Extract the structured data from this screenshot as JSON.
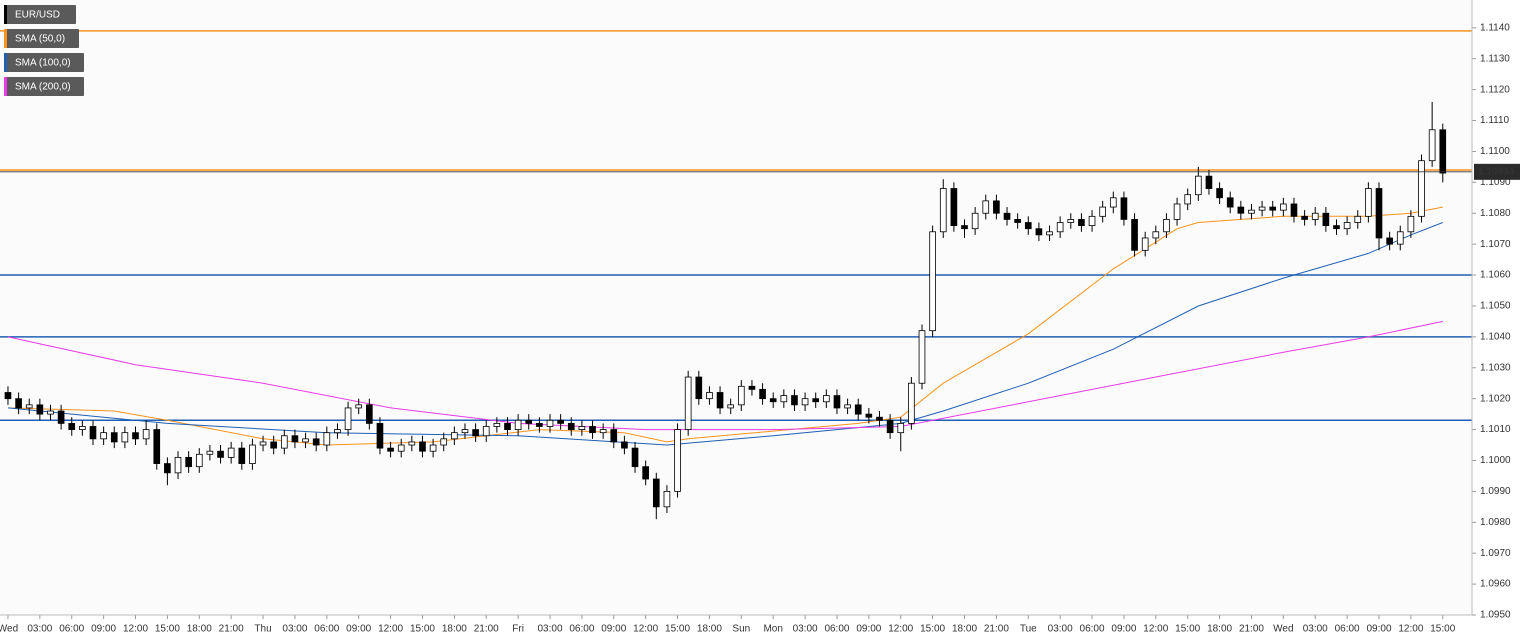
{
  "chart_data": {
    "type": "candlestick",
    "name": "EUR/USD",
    "color": "#000000",
    "up_color": "#ffffff",
    "down_color": "#000000",
    "open": [
      1.1022,
      1.102,
      1.1017,
      1.1018,
      1.1015,
      1.1016,
      1.1012,
      1.101,
      1.1011,
      1.1007,
      1.1009,
      1.1006,
      1.1009,
      1.1007,
      1.101,
      1.0999,
      1.0996,
      1.1001,
      1.0998,
      1.1002,
      1.1003,
      1.1001,
      1.1004,
      1.0999,
      1.1005,
      1.1006,
      1.1004,
      1.1008,
      1.1006,
      1.1007,
      1.1005,
      1.1009,
      1.101,
      1.1017,
      1.1018,
      1.1012,
      1.1004,
      1.1003,
      1.1005,
      1.1006,
      1.1003,
      1.1005,
      1.1007,
      1.1009,
      1.101,
      1.1008,
      1.1011,
      1.1012,
      1.101,
      1.1013,
      1.1012,
      1.1011,
      1.1013,
      1.1012,
      1.101,
      1.1011,
      1.1009,
      1.101,
      1.1006,
      1.1004,
      1.0998,
      1.0994,
      1.0985,
      1.099,
      1.101,
      1.1027,
      1.102,
      1.1022,
      1.1017,
      1.1018,
      1.1024,
      1.1023,
      1.102,
      1.1019,
      1.1021,
      1.1018,
      1.102,
      1.1019,
      1.1021,
      1.1017,
      1.1018,
      1.1015,
      1.1014,
      1.1013,
      1.1009,
      1.1012,
      1.1025,
      1.1042,
      1.1074,
      1.1088,
      1.1076,
      1.1075,
      1.108,
      1.1084,
      1.108,
      1.1078,
      1.1077,
      1.1075,
      1.1073,
      1.1074,
      1.1077,
      1.1078,
      1.1076,
      1.1079,
      1.1082,
      1.1085,
      1.1078,
      1.1068,
      1.1072,
      1.1074,
      1.1078,
      1.1083,
      1.1086,
      1.1092,
      1.1088,
      1.1085,
      1.1082,
      1.108,
      1.1081,
      1.1082,
      1.1081,
      1.1083,
      1.1079,
      1.1078,
      1.108,
      1.1076,
      1.1075,
      1.1077,
      1.1079,
      1.1088,
      1.1072,
      1.107,
      1.1074,
      1.1079,
      1.1097,
      1.1107
    ],
    "high": [
      1.1024,
      1.1022,
      1.102,
      1.102,
      1.1018,
      1.1018,
      1.1014,
      1.1013,
      1.1013,
      1.1011,
      1.1011,
      1.1011,
      1.1011,
      1.1013,
      1.1012,
      1.1001,
      1.1003,
      1.1003,
      1.1004,
      1.1005,
      1.1005,
      1.1006,
      1.1006,
      1.1007,
      1.1008,
      1.1008,
      1.101,
      1.101,
      1.1009,
      1.1009,
      1.1011,
      1.1012,
      1.1019,
      1.102,
      1.102,
      1.1014,
      1.1006,
      1.1007,
      1.1008,
      1.1008,
      1.1007,
      1.1009,
      1.1011,
      1.1012,
      1.1012,
      1.1013,
      1.1014,
      1.1014,
      1.1015,
      1.1015,
      1.1014,
      1.1015,
      1.1015,
      1.1014,
      1.1013,
      1.1013,
      1.1012,
      1.1012,
      1.1008,
      1.1006,
      1.1,
      1.0996,
      1.0992,
      1.1012,
      1.1029,
      1.1029,
      1.1024,
      1.1024,
      1.102,
      1.1026,
      1.1026,
      1.1025,
      1.1022,
      1.1023,
      1.1023,
      1.1022,
      1.1022,
      1.1023,
      1.1023,
      1.102,
      1.102,
      1.1017,
      1.1016,
      1.1015,
      1.1014,
      1.1027,
      1.1044,
      1.1076,
      1.1091,
      1.109,
      1.1078,
      1.1082,
      1.1086,
      1.1086,
      1.1082,
      1.108,
      1.1079,
      1.1077,
      1.1076,
      1.1079,
      1.108,
      1.108,
      1.1081,
      1.1084,
      1.1087,
      1.1087,
      1.108,
      1.1074,
      1.1076,
      1.108,
      1.1085,
      1.1088,
      1.1095,
      1.1094,
      1.109,
      1.1087,
      1.1084,
      1.1083,
      1.1084,
      1.1084,
      1.1085,
      1.1085,
      1.1081,
      1.1082,
      1.1082,
      1.1078,
      1.1079,
      1.1081,
      1.109,
      1.109,
      1.1074,
      1.1076,
      1.1081,
      1.1099,
      1.1116,
      1.1109
    ],
    "low": [
      1.1018,
      1.1015,
      1.1015,
      1.1013,
      1.1013,
      1.101,
      1.1008,
      1.1008,
      1.1005,
      1.1005,
      1.1004,
      1.1004,
      1.1005,
      1.1005,
      1.0997,
      1.0992,
      1.0994,
      1.0996,
      1.0996,
      1.1,
      1.0999,
      1.0999,
      1.0997,
      1.0997,
      1.1003,
      1.1002,
      1.1002,
      1.1004,
      1.1004,
      1.1003,
      1.1003,
      1.1007,
      1.1008,
      1.1015,
      1.101,
      1.1002,
      1.1001,
      1.1001,
      1.1003,
      1.1001,
      1.1001,
      1.1003,
      1.1005,
      1.1007,
      1.1006,
      1.1006,
      1.1009,
      1.1008,
      1.1008,
      1.101,
      1.1009,
      1.1009,
      1.101,
      1.1008,
      1.1008,
      1.1007,
      1.1007,
      1.1004,
      1.1002,
      1.0996,
      1.0992,
      1.0981,
      1.0983,
      1.0988,
      1.1008,
      1.1018,
      1.1018,
      1.1015,
      1.1015,
      1.1016,
      1.1021,
      1.1018,
      1.1017,
      1.1017,
      1.1016,
      1.1016,
      1.1017,
      1.1017,
      1.1015,
      1.1015,
      1.1013,
      1.1012,
      1.1011,
      1.1007,
      1.1003,
      1.101,
      1.1023,
      1.104,
      1.1072,
      1.1074,
      1.1072,
      1.1073,
      1.1078,
      1.1078,
      1.1076,
      1.1075,
      1.1073,
      1.1071,
      1.1071,
      1.1072,
      1.1075,
      1.1074,
      1.1074,
      1.1077,
      1.108,
      1.1076,
      1.1066,
      1.1066,
      1.107,
      1.1072,
      1.1076,
      1.1081,
      1.1084,
      1.1086,
      1.1083,
      1.108,
      1.1078,
      1.1078,
      1.1079,
      1.1079,
      1.1079,
      1.1077,
      1.1076,
      1.1076,
      1.1074,
      1.1073,
      1.1073,
      1.1075,
      1.1077,
      1.1068,
      1.1068,
      1.1068,
      1.1072,
      1.1077,
      1.1095,
      1.109
    ],
    "close": [
      1.102,
      1.1017,
      1.1018,
      1.1015,
      1.1016,
      1.1012,
      1.101,
      1.1011,
      1.1007,
      1.1009,
      1.1006,
      1.1009,
      1.1007,
      1.101,
      1.0999,
      1.0996,
      1.1001,
      1.0998,
      1.1002,
      1.1003,
      1.1001,
      1.1004,
      1.0999,
      1.1005,
      1.1006,
      1.1004,
      1.1008,
      1.1006,
      1.1007,
      1.1005,
      1.1009,
      1.101,
      1.1017,
      1.1018,
      1.1012,
      1.1004,
      1.1003,
      1.1005,
      1.1006,
      1.1003,
      1.1005,
      1.1007,
      1.1009,
      1.101,
      1.1008,
      1.1011,
      1.1012,
      1.101,
      1.1013,
      1.1012,
      1.1011,
      1.1013,
      1.1012,
      1.101,
      1.1011,
      1.1009,
      1.101,
      1.1006,
      1.1004,
      1.0998,
      1.0994,
      1.0985,
      1.099,
      1.101,
      1.1027,
      1.102,
      1.1022,
      1.1017,
      1.1018,
      1.1024,
      1.1023,
      1.102,
      1.1019,
      1.1021,
      1.1018,
      1.102,
      1.1019,
      1.1021,
      1.1017,
      1.1018,
      1.1015,
      1.1014,
      1.1013,
      1.1009,
      1.1012,
      1.1025,
      1.1042,
      1.1074,
      1.1088,
      1.1076,
      1.1075,
      1.108,
      1.1084,
      1.108,
      1.1078,
      1.1077,
      1.1075,
      1.1073,
      1.1074,
      1.1077,
      1.1078,
      1.1076,
      1.1079,
      1.1082,
      1.1085,
      1.1078,
      1.1068,
      1.1072,
      1.1074,
      1.1078,
      1.1083,
      1.1086,
      1.1092,
      1.1088,
      1.1085,
      1.1082,
      1.108,
      1.1081,
      1.1082,
      1.1081,
      1.1083,
      1.1079,
      1.1078,
      1.108,
      1.1076,
      1.1075,
      1.1077,
      1.1079,
      1.1088,
      1.1072,
      1.107,
      1.1074,
      1.1079,
      1.1097,
      1.1107,
      1.1093
    ],
    "series": [
      {
        "name": "SMA (50,0)",
        "color": "#f7931e",
        "x": [
          0,
          10,
          15,
          24,
          30,
          40,
          50,
          58,
          62,
          64,
          80,
          84,
          88,
          96,
          104,
          110,
          112,
          120,
          128,
          132,
          135
        ],
        "values": [
          1.1017,
          1.1016,
          1.1013,
          1.1007,
          1.1005,
          1.1006,
          1.101,
          1.1009,
          1.1006,
          1.1007,
          1.1012,
          1.1014,
          1.1025,
          1.1041,
          1.1062,
          1.1075,
          1.1077,
          1.1079,
          1.1079,
          1.108,
          1.1082
        ]
      },
      {
        "name": "SMA (100,0)",
        "color": "#1f5fb4",
        "x": [
          0,
          15,
          30,
          48,
          62,
          72,
          84,
          88,
          96,
          104,
          112,
          120,
          128,
          132,
          135
        ],
        "values": [
          1.1017,
          1.1012,
          1.1009,
          1.1008,
          1.1005,
          1.1008,
          1.1012,
          1.1016,
          1.1025,
          1.1036,
          1.105,
          1.1059,
          1.1067,
          1.1073,
          1.1077
        ]
      },
      {
        "name": "SMA (200,0)",
        "color": "#e83be8",
        "x": [
          0,
          12,
          24,
          36,
          48,
          60,
          72,
          84,
          96,
          108,
          120,
          128,
          135
        ],
        "values": [
          1.104,
          1.1031,
          1.1025,
          1.1017,
          1.1012,
          1.101,
          1.101,
          1.1011,
          1.1019,
          1.1027,
          1.1035,
          1.104,
          1.1045
        ]
      }
    ],
    "levels": [
      {
        "value": 1.1139,
        "color": "#f7931e"
      },
      {
        "value": 1.1094,
        "color": "#f7931e"
      },
      {
        "value": 1.106,
        "color": "#1f5fb4"
      },
      {
        "value": 1.104,
        "color": "#1f5fb4"
      },
      {
        "value": 1.1013,
        "color": "#1f5fb4"
      }
    ],
    "last_price": 1.10934,
    "xlim": [
      -0.75,
      137.75
    ],
    "xticks": [
      {
        "value": 0,
        "label": "Wed"
      },
      {
        "value": 3,
        "label": "03:00"
      },
      {
        "value": 6,
        "label": "06:00"
      },
      {
        "value": 9,
        "label": "09:00"
      },
      {
        "value": 12,
        "label": "12:00"
      },
      {
        "value": 15,
        "label": "15:00"
      },
      {
        "value": 18,
        "label": "18:00"
      },
      {
        "value": 21,
        "label": "21:00"
      },
      {
        "value": 24,
        "label": "Thu"
      },
      {
        "value": 27,
        "label": "03:00"
      },
      {
        "value": 30,
        "label": "06:00"
      },
      {
        "value": 33,
        "label": "09:00"
      },
      {
        "value": 36,
        "label": "12:00"
      },
      {
        "value": 39,
        "label": "15:00"
      },
      {
        "value": 42,
        "label": "18:00"
      },
      {
        "value": 45,
        "label": "21:00"
      },
      {
        "value": 48,
        "label": "Fri"
      },
      {
        "value": 51,
        "label": "03:00"
      },
      {
        "value": 54,
        "label": "06:00"
      },
      {
        "value": 57,
        "label": "09:00"
      },
      {
        "value": 60,
        "label": "12:00"
      },
      {
        "value": 63,
        "label": "15:00"
      },
      {
        "value": 66,
        "label": "18:00"
      },
      {
        "value": 69,
        "label": "Sun"
      },
      {
        "value": 72,
        "label": "Mon"
      },
      {
        "value": 75,
        "label": "03:00"
      },
      {
        "value": 78,
        "label": "06:00"
      },
      {
        "value": 81,
        "label": "09:00"
      },
      {
        "value": 84,
        "label": "12:00"
      },
      {
        "value": 87,
        "label": "15:00"
      },
      {
        "value": 90,
        "label": "18:00"
      },
      {
        "value": 93,
        "label": "21:00"
      },
      {
        "value": 96,
        "label": "Tue"
      },
      {
        "value": 99,
        "label": "03:00"
      },
      {
        "value": 102,
        "label": "06:00"
      },
      {
        "value": 105,
        "label": "09:00"
      },
      {
        "value": 108,
        "label": "12:00"
      },
      {
        "value": 111,
        "label": "15:00"
      },
      {
        "value": 114,
        "label": "18:00"
      },
      {
        "value": 117,
        "label": "21:00"
      },
      {
        "value": 120,
        "label": "Wed"
      },
      {
        "value": 123,
        "label": "03:00"
      },
      {
        "value": 126,
        "label": "06:00"
      },
      {
        "value": 129,
        "label": "09:00"
      },
      {
        "value": 132,
        "label": "12:00"
      },
      {
        "value": 135,
        "label": "15:00"
      }
    ],
    "ylim": [
      1.095,
      1.1149
    ],
    "yticks": [
      {
        "value": 1.095,
        "label": "1.0950"
      },
      {
        "value": 1.096,
        "label": "1.0960"
      },
      {
        "value": 1.097,
        "label": "1.0970"
      },
      {
        "value": 1.098,
        "label": "1.0980"
      },
      {
        "value": 1.099,
        "label": "1.0990"
      },
      {
        "value": 1.1,
        "label": "1.1000"
      },
      {
        "value": 1.101,
        "label": "1.1010"
      },
      {
        "value": 1.102,
        "label": "1.1020"
      },
      {
        "value": 1.103,
        "label": "1.1030"
      },
      {
        "value": 1.104,
        "label": "1.1040"
      },
      {
        "value": 1.105,
        "label": "1.1050"
      },
      {
        "value": 1.106,
        "label": "1.1060"
      },
      {
        "value": 1.107,
        "label": "1.1070"
      },
      {
        "value": 1.108,
        "label": "1.1080"
      },
      {
        "value": 1.109,
        "label": "1.1090"
      },
      {
        "value": 1.11,
        "label": "1.1100"
      },
      {
        "value": 1.111,
        "label": "1.1110"
      },
      {
        "value": 1.112,
        "label": "1.1120"
      },
      {
        "value": 1.113,
        "label": "1.1130"
      },
      {
        "value": 1.114,
        "label": "1.1140"
      }
    ],
    "grid": true
  }
}
